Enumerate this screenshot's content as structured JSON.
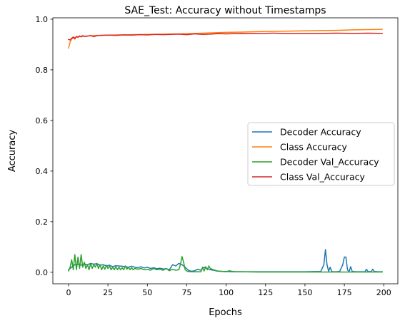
{
  "chart_data": {
    "type": "line",
    "title": "SAE_Test: Accuracy without Timestamps",
    "xlabel": "Epochs",
    "ylabel": "Accuracy",
    "xlim": [
      -9.95,
      208.95
    ],
    "ylim": [
      -0.0455,
      1.0055
    ],
    "xticks": [
      0,
      25,
      50,
      75,
      100,
      125,
      150,
      175,
      200
    ],
    "yticks": [
      0.0,
      0.2,
      0.4,
      0.6,
      0.8,
      1.0
    ],
    "xtick_labels": [
      "0",
      "25",
      "50",
      "75",
      "100",
      "125",
      "150",
      "175",
      "200"
    ],
    "ytick_labels": [
      "0.0",
      "0.2",
      "0.4",
      "0.6",
      "0.8",
      "1.0"
    ],
    "grid": false,
    "legend_position": "center-right",
    "series": [
      {
        "name": "Decoder Accuracy",
        "color": "#1f77b4",
        "x": [
          0,
          2,
          4,
          6,
          8,
          10,
          12,
          14,
          16,
          18,
          20,
          22,
          24,
          26,
          28,
          30,
          32,
          34,
          36,
          38,
          40,
          42,
          44,
          46,
          48,
          50,
          52,
          54,
          56,
          58,
          60,
          62,
          64,
          66,
          68,
          70,
          72,
          74,
          76,
          78,
          80,
          82,
          84,
          86,
          88,
          90,
          92,
          94,
          96,
          98,
          100,
          104,
          110,
          120,
          130,
          140,
          150,
          160,
          162,
          163,
          164,
          165,
          166,
          167,
          168,
          170,
          172,
          174,
          175,
          176,
          177,
          178,
          179,
          180,
          182,
          185,
          188,
          189,
          190,
          192,
          193,
          194,
          196,
          199
        ],
        "values": [
          0.01,
          0.02,
          0.03,
          0.032,
          0.028,
          0.033,
          0.03,
          0.035,
          0.032,
          0.034,
          0.028,
          0.03,
          0.025,
          0.028,
          0.022,
          0.026,
          0.025,
          0.024,
          0.022,
          0.02,
          0.024,
          0.02,
          0.018,
          0.022,
          0.017,
          0.02,
          0.015,
          0.018,
          0.014,
          0.016,
          0.013,
          0.014,
          0.01,
          0.03,
          0.025,
          0.035,
          0.03,
          0.02,
          0.008,
          0.004,
          0.006,
          0.012,
          0.008,
          0.02,
          0.015,
          0.01,
          0.008,
          0.005,
          0.004,
          0.003,
          0.003,
          0.002,
          0.002,
          0.002,
          0.002,
          0.002,
          0.002,
          0.003,
          0.03,
          0.09,
          0.03,
          0.004,
          0.02,
          0.003,
          0.002,
          0.002,
          0.003,
          0.03,
          0.06,
          0.06,
          0.01,
          0.002,
          0.022,
          0.003,
          0.002,
          0.002,
          0.002,
          0.012,
          0.003,
          0.002,
          0.012,
          0.003,
          0.002,
          0.002
        ]
      },
      {
        "name": "Class Accuracy",
        "color": "#ff7f0e",
        "x": [
          0,
          1,
          2,
          3,
          4,
          5,
          6,
          8,
          10,
          12,
          15,
          20,
          25,
          30,
          40,
          50,
          60,
          70,
          80,
          90,
          100,
          110,
          120,
          130,
          140,
          150,
          160,
          170,
          180,
          190,
          199
        ],
        "values": [
          0.886,
          0.91,
          0.922,
          0.925,
          0.928,
          0.93,
          0.931,
          0.932,
          0.933,
          0.934,
          0.935,
          0.936,
          0.937,
          0.938,
          0.939,
          0.94,
          0.941,
          0.942,
          0.944,
          0.946,
          0.948,
          0.949,
          0.951,
          0.952,
          0.953,
          0.954,
          0.955,
          0.956,
          0.958,
          0.959,
          0.96
        ]
      },
      {
        "name": "Decoder Val_Accuracy",
        "color": "#2ca02c",
        "x": [
          0,
          1,
          2,
          3,
          4,
          5,
          6,
          7,
          8,
          9,
          10,
          11,
          12,
          13,
          14,
          15,
          16,
          17,
          18,
          19,
          20,
          21,
          22,
          23,
          24,
          25,
          26,
          27,
          28,
          29,
          30,
          31,
          32,
          33,
          34,
          35,
          36,
          37,
          38,
          39,
          40,
          41,
          42,
          44,
          46,
          48,
          50,
          52,
          54,
          56,
          58,
          60,
          62,
          64,
          66,
          68,
          70,
          71,
          72,
          73,
          74,
          75,
          76,
          78,
          80,
          82,
          84,
          85,
          86,
          87,
          88,
          89,
          90,
          92,
          94,
          96,
          98,
          100,
          102,
          104,
          106,
          110,
          120,
          130,
          140,
          150,
          160,
          170,
          180,
          190,
          199
        ],
        "values": [
          0.005,
          0.02,
          0.05,
          0.01,
          0.07,
          0.01,
          0.06,
          0.015,
          0.07,
          0.02,
          0.04,
          0.015,
          0.03,
          0.01,
          0.035,
          0.015,
          0.03,
          0.02,
          0.035,
          0.015,
          0.03,
          0.01,
          0.025,
          0.012,
          0.028,
          0.015,
          0.025,
          0.01,
          0.02,
          0.01,
          0.022,
          0.01,
          0.02,
          0.01,
          0.018,
          0.01,
          0.025,
          0.012,
          0.02,
          0.01,
          0.018,
          0.01,
          0.015,
          0.012,
          0.015,
          0.01,
          0.012,
          0.008,
          0.015,
          0.01,
          0.012,
          0.008,
          0.015,
          0.006,
          0.012,
          0.008,
          0.01,
          0.03,
          0.062,
          0.04,
          0.01,
          0.005,
          0.003,
          0.002,
          0.002,
          0.002,
          0.002,
          0.02,
          0.005,
          0.022,
          0.01,
          0.025,
          0.015,
          0.01,
          0.006,
          0.004,
          0.003,
          0.002,
          0.006,
          0.003,
          0.002,
          0.002,
          0.001,
          0.001,
          0.001,
          0.001,
          0.001,
          0.001,
          0.001,
          0.001,
          0.001
        ]
      },
      {
        "name": "Class Val_Accuracy",
        "color": "#d62728",
        "x": [
          0,
          1,
          2,
          3,
          4,
          5,
          6,
          7,
          8,
          9,
          10,
          12,
          14,
          16,
          18,
          20,
          25,
          30,
          35,
          40,
          45,
          50,
          55,
          60,
          65,
          70,
          75,
          80,
          85,
          90,
          95,
          100,
          110,
          120,
          130,
          140,
          150,
          160,
          170,
          180,
          190,
          199
        ],
        "values": [
          0.92,
          0.918,
          0.925,
          0.93,
          0.922,
          0.932,
          0.928,
          0.934,
          0.93,
          0.935,
          0.932,
          0.933,
          0.936,
          0.931,
          0.935,
          0.936,
          0.937,
          0.936,
          0.938,
          0.937,
          0.939,
          0.938,
          0.94,
          0.939,
          0.94,
          0.941,
          0.939,
          0.942,
          0.94,
          0.941,
          0.943,
          0.942,
          0.944,
          0.943,
          0.945,
          0.943,
          0.944,
          0.944,
          0.945,
          0.944,
          0.945,
          0.944
        ]
      }
    ]
  }
}
